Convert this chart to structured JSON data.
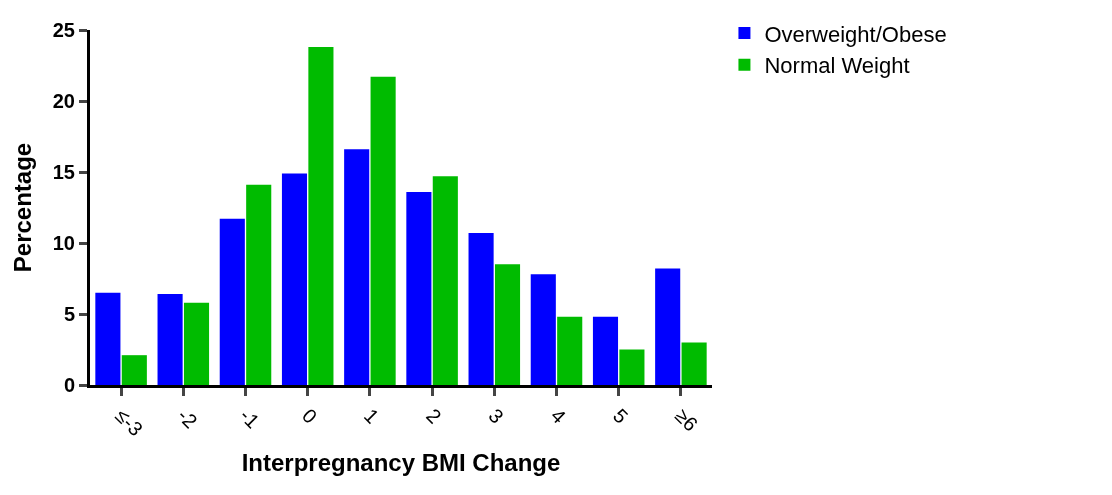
{
  "chart_data": {
    "type": "bar",
    "xlabel": "Interpregnancy BMI Change",
    "ylabel": "Percentage",
    "categories": [
      "≤-3",
      "-2",
      "-1",
      "0",
      "1",
      "2",
      "3",
      "4",
      "5",
      "≥6"
    ],
    "series": [
      {
        "name": "Overweight/Obese",
        "color": "#0000ff",
        "values": [
          6.5,
          6.4,
          11.7,
          14.9,
          16.6,
          13.6,
          10.7,
          7.8,
          4.8,
          8.2
        ]
      },
      {
        "name": "Normal Weight",
        "color": "#00bb00",
        "values": [
          2.1,
          5.8,
          14.1,
          23.8,
          21.7,
          14.7,
          8.5,
          4.8,
          2.5,
          3.0
        ]
      }
    ],
    "ylim": [
      0,
      25
    ],
    "yticks": [
      0,
      5,
      10,
      15,
      20,
      25
    ],
    "grid": false,
    "legend": "top right"
  }
}
